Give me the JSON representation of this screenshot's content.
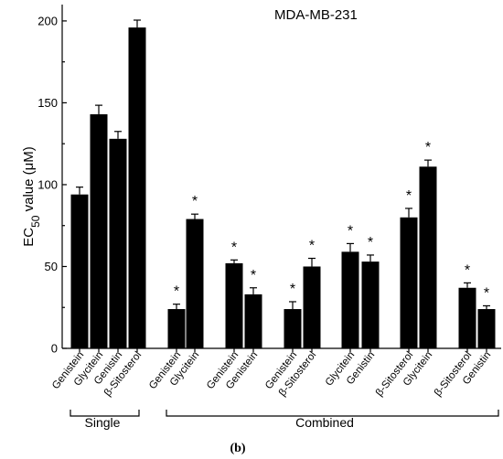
{
  "chart_data": {
    "type": "bar",
    "title": "MDA-MB-231",
    "ylabel_prefix": "EC",
    "ylabel_sub": "50",
    "ylabel_suffix": " value (μM)",
    "ylim": [
      0,
      210
    ],
    "yticks": [
      0,
      50,
      100,
      150,
      200
    ],
    "bars": [
      {
        "label": "Genistein",
        "value": 94,
        "err": 4.5,
        "star": false
      },
      {
        "label": "Glycitein",
        "value": 143,
        "err": 5.5,
        "star": false
      },
      {
        "label": "Genistin",
        "value": 128,
        "err": 4.5,
        "star": false
      },
      {
        "label": "β-Sitosterol",
        "value": 196,
        "err": 4.5,
        "star": false
      },
      {
        "label": "Genistein",
        "value": 24,
        "err": 3,
        "star": true
      },
      {
        "label": "Glycitein",
        "value": 79,
        "err": 3,
        "star": true
      },
      {
        "label": "Genistein",
        "value": 52,
        "err": 2,
        "star": true
      },
      {
        "label": "Genistein",
        "value": 33,
        "err": 4,
        "star": true
      },
      {
        "label": "Genistein",
        "value": 24,
        "err": 4.5,
        "star": true
      },
      {
        "label": "β-Sitosterol",
        "value": 50,
        "err": 5,
        "star": true
      },
      {
        "label": "Glycitein",
        "value": 59,
        "err": 5,
        "star": true
      },
      {
        "label": "Genistin",
        "value": 53,
        "err": 4,
        "star": true
      },
      {
        "label": "β-Sitosterol",
        "value": 80,
        "err": 5.5,
        "star": true
      },
      {
        "label": "Glycitein",
        "value": 111,
        "err": 4,
        "star": true
      },
      {
        "label": "β-Sitosterol",
        "value": 37,
        "err": 3,
        "star": true
      },
      {
        "label": "Genistin",
        "value": 24,
        "err": 2,
        "star": true
      }
    ],
    "groups": [
      {
        "label": "Single"
      },
      {
        "label": "Combined"
      }
    ],
    "panel_label": "(b)"
  }
}
